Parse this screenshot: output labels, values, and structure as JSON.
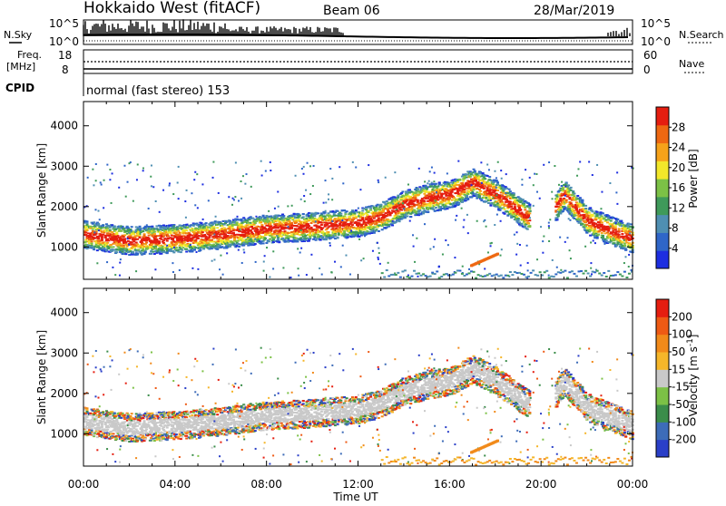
{
  "header": {
    "radar": "Hokkaido West (fitACF)",
    "beam": "Beam 06",
    "date": "28/Mar/2019"
  },
  "panels": {
    "noise": {
      "left_label": "N.Sky",
      "right_label": "N.Search",
      "tick_top": "10^5",
      "tick_bottom": "10^0"
    },
    "freq": {
      "left_label_1": "Freq.",
      "left_label_2": "[MHz]",
      "right_label": "Nave",
      "left_tick_top": "18",
      "left_tick_bottom": "8",
      "right_tick_top": "60",
      "right_tick_bottom": "0"
    },
    "cpid": {
      "label": "CPID",
      "text": "normal (fast stereo) 153"
    }
  },
  "chart_data": [
    {
      "type": "heatmap",
      "name": "power",
      "ylabel": "Slant Range [km]",
      "ylim": [
        200,
        4600
      ],
      "yticks": [
        "1000",
        "2000",
        "3000",
        "4000"
      ],
      "xlabel": "Time UT",
      "xticks": [
        "00:00",
        "04:00",
        "08:00",
        "12:00",
        "16:00",
        "20:00",
        "00:00"
      ],
      "colorbar": {
        "label": "Power [dB]",
        "ticks": [
          "4",
          "8",
          "12",
          "16",
          "20",
          "24",
          "28"
        ],
        "colors": [
          "#1d2ee0",
          "#2f66c8",
          "#4f8fb2",
          "#3f9a5a",
          "#7cc146",
          "#f2e72a",
          "#f6a21a",
          "#ee6812",
          "#e51e10"
        ]
      },
      "echo_band": {
        "time_h": [
          0,
          2,
          4,
          6,
          8,
          10,
          12,
          13,
          14,
          15,
          16,
          17,
          18,
          19,
          20,
          21,
          22,
          23,
          24
        ],
        "range_km": [
          1300,
          1150,
          1200,
          1300,
          1450,
          1500,
          1600,
          1750,
          2050,
          2200,
          2300,
          2600,
          2300,
          1900,
          1500,
          2300,
          1650,
          1400,
          1200
        ]
      }
    },
    {
      "type": "heatmap",
      "name": "velocity",
      "ylabel": "Slant Range [km]",
      "ylim": [
        200,
        4600
      ],
      "yticks": [
        "1000",
        "2000",
        "3000",
        "4000"
      ],
      "xlabel": "Time UT",
      "xticks": [
        "00:00",
        "04:00",
        "08:00",
        "12:00",
        "16:00",
        "20:00",
        "00:00"
      ],
      "colorbar": {
        "label": "Velocity [m s^-1]",
        "ticks": [
          "200",
          "100",
          "50",
          "15",
          "-15",
          "-50",
          "-100",
          "-200"
        ],
        "colors": [
          "#2a3fc8",
          "#3d6cb8",
          "#3b8d4a",
          "#7cc146",
          "#c9c9c9",
          "#f5b62a",
          "#f18a1a",
          "#ee5a14",
          "#e51e10"
        ]
      }
    }
  ]
}
